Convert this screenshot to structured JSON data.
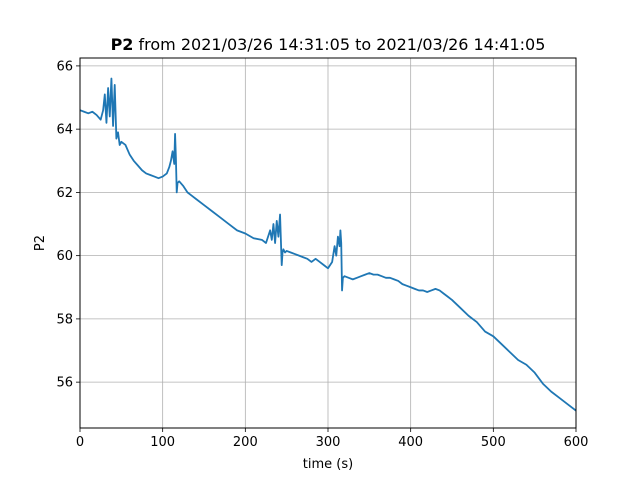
{
  "chart_data": {
    "type": "line",
    "title_bold": "P2",
    "title_rest": " from 2021/03/26 14:31:05 to 2021/03/26 14:41:05",
    "xlabel": "time (s)",
    "ylabel": "P2",
    "xlim": [
      0,
      600
    ],
    "ylim": [
      54.55,
      66.25
    ],
    "xticks": [
      0,
      100,
      200,
      300,
      400,
      500,
      600
    ],
    "yticks": [
      56,
      58,
      60,
      62,
      64,
      66
    ],
    "xtick_labels": [
      "0",
      "100",
      "200",
      "300",
      "400",
      "500",
      "600"
    ],
    "ytick_labels": [
      "56",
      "58",
      "60",
      "62",
      "64",
      "66"
    ],
    "grid": true,
    "line_color": "#1f77b4",
    "series": [
      {
        "x": [
          0,
          5,
          10,
          15,
          20,
          25,
          28,
          30,
          32,
          34,
          36,
          38,
          40,
          42,
          44,
          46,
          48,
          50,
          55,
          60,
          65,
          70,
          75,
          80,
          85,
          90,
          95,
          100,
          105,
          108,
          110,
          112,
          114,
          115,
          116,
          117,
          118,
          120,
          125,
          130,
          135,
          140,
          150,
          160,
          170,
          180,
          190,
          200,
          210,
          220,
          225,
          230,
          232,
          234,
          236,
          238,
          240,
          242,
          244,
          245,
          246,
          248,
          250,
          255,
          260,
          265,
          270,
          275,
          280,
          285,
          290,
          295,
          300,
          305,
          308,
          310,
          312,
          314,
          315,
          316,
          317,
          318,
          320,
          325,
          330,
          335,
          340,
          345,
          350,
          355,
          360,
          365,
          370,
          375,
          380,
          385,
          390,
          395,
          400,
          405,
          410,
          415,
          420,
          425,
          430,
          435,
          440,
          445,
          450,
          460,
          470,
          480,
          490,
          500,
          510,
          520,
          530,
          540,
          550,
          560,
          570,
          580,
          590,
          600
        ],
        "y": [
          64.6,
          64.55,
          64.5,
          64.55,
          64.45,
          64.3,
          64.6,
          65.1,
          64.2,
          65.3,
          64.4,
          65.6,
          64.1,
          65.4,
          63.7,
          63.9,
          63.5,
          63.6,
          63.5,
          63.2,
          63.0,
          62.85,
          62.7,
          62.6,
          62.55,
          62.5,
          62.45,
          62.5,
          62.6,
          62.8,
          63.0,
          63.3,
          62.9,
          63.85,
          63.1,
          62.0,
          62.3,
          62.35,
          62.2,
          62.0,
          61.9,
          61.8,
          61.6,
          61.4,
          61.2,
          61.0,
          60.8,
          60.7,
          60.55,
          60.5,
          60.4,
          60.8,
          60.5,
          61.0,
          60.4,
          61.1,
          60.6,
          61.3,
          59.7,
          60.1,
          60.2,
          60.1,
          60.15,
          60.1,
          60.05,
          60.0,
          59.95,
          59.9,
          59.8,
          59.9,
          59.8,
          59.7,
          59.6,
          59.8,
          60.3,
          60.0,
          60.6,
          60.3,
          60.8,
          60.4,
          58.9,
          59.3,
          59.35,
          59.3,
          59.25,
          59.3,
          59.35,
          59.4,
          59.45,
          59.4,
          59.4,
          59.35,
          59.3,
          59.3,
          59.25,
          59.2,
          59.1,
          59.05,
          59.0,
          58.95,
          58.9,
          58.9,
          58.85,
          58.9,
          58.95,
          58.9,
          58.8,
          58.7,
          58.6,
          58.35,
          58.1,
          57.9,
          57.6,
          57.45,
          57.2,
          56.95,
          56.7,
          56.55,
          56.3,
          55.95,
          55.7,
          55.5,
          55.3,
          55.1
        ]
      }
    ]
  }
}
